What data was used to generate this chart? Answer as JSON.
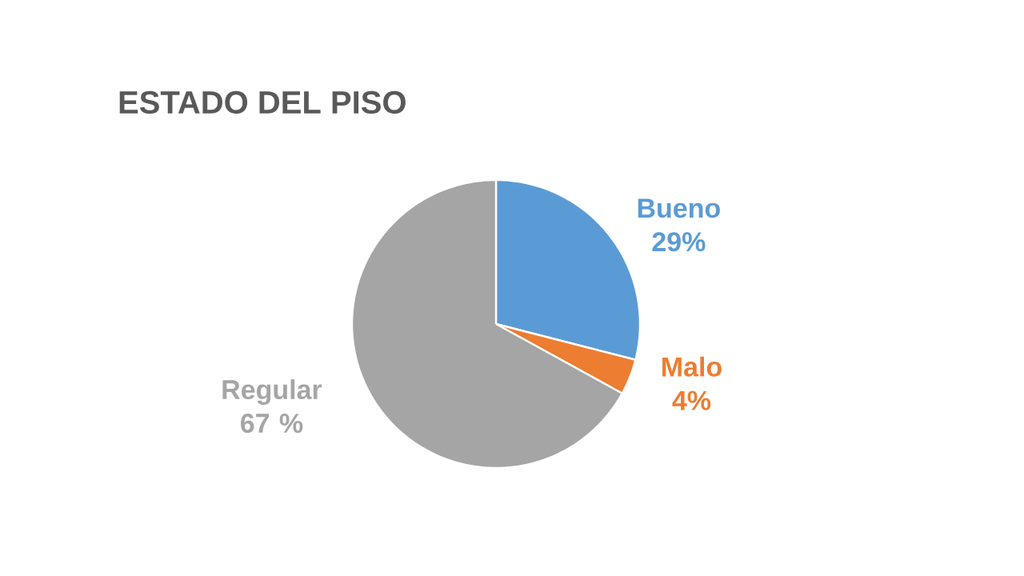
{
  "chart_data": {
    "type": "pie",
    "title": "ESTADO DEL PISO",
    "categories": [
      "Bueno",
      "Malo",
      "Regular"
    ],
    "values": [
      29,
      4,
      67
    ],
    "value_labels": [
      "29%",
      "4%",
      "67 %"
    ],
    "colors": [
      "#5b9bd5",
      "#ed7d31",
      "#a5a5a5"
    ]
  }
}
